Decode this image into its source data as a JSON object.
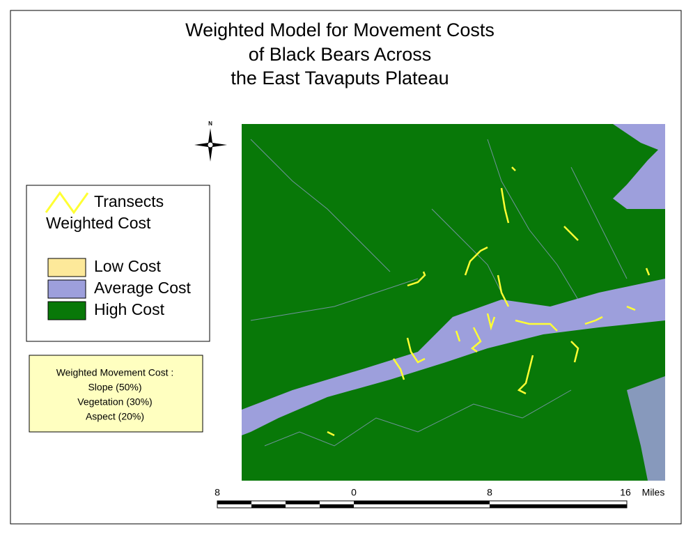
{
  "title": [
    "Weighted Model for Movement Costs",
    "of Black Bears Across",
    "the East Tavaputs Plateau"
  ],
  "north_label": "N",
  "legend": {
    "transects": "Transects",
    "heading": "Weighted Cost",
    "items": [
      {
        "label": "Low Cost",
        "color": "#fde99a"
      },
      {
        "label": "Average Cost",
        "color": "#9d9fdc"
      },
      {
        "label": "High Cost",
        "color": "#087808"
      }
    ]
  },
  "note": [
    "Weighted Movement Cost :",
    "Slope (50%)",
    "Vegetation (30%)",
    "Aspect (20%)"
  ],
  "scale_bar": {
    "labels": [
      "8",
      "0",
      "8",
      "16"
    ],
    "unit": "Miles"
  }
}
